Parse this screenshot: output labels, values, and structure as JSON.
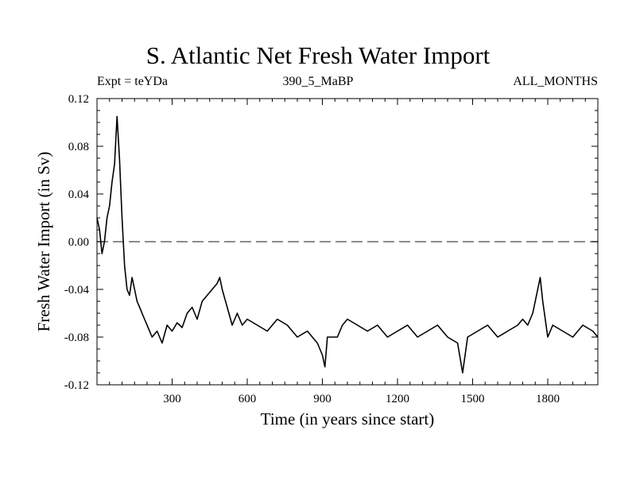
{
  "chart_data": {
    "type": "line",
    "title": "S. Atlantic Net Fresh Water Import",
    "subtitle_left": "Expt = teYDa",
    "subtitle_center": "390_5_MaBP",
    "subtitle_right": "ALL_MONTHS",
    "xlabel": "Time (in years since start)",
    "ylabel": "Fresh Water Import (in Sv)",
    "xlim": [
      0,
      2000
    ],
    "ylim": [
      -0.12,
      0.12
    ],
    "x_ticks": [
      300,
      600,
      900,
      1200,
      1500,
      1800
    ],
    "x_tick_labels": [
      "300",
      "600",
      "900",
      "1200",
      "1500",
      "1800"
    ],
    "y_ticks": [
      0.12,
      0.08,
      0.04,
      0.0,
      -0.04,
      -0.08,
      -0.12
    ],
    "y_tick_labels": [
      "0.12",
      "0.08",
      "0.04",
      "0.00",
      "-0.04",
      "-0.08",
      "-0.12"
    ],
    "reference_line": {
      "y": 0.0,
      "style": "dashed"
    },
    "grid": false,
    "series": [
      {
        "name": "net fresh water import",
        "x": [
          0,
          10,
          20,
          30,
          40,
          50,
          60,
          70,
          80,
          90,
          100,
          110,
          120,
          130,
          140,
          150,
          160,
          170,
          180,
          190,
          200,
          220,
          240,
          260,
          280,
          300,
          320,
          340,
          360,
          380,
          400,
          420,
          440,
          460,
          480,
          490,
          500,
          520,
          540,
          560,
          580,
          600,
          640,
          680,
          720,
          760,
          800,
          840,
          880,
          900,
          910,
          920,
          940,
          960,
          980,
          1000,
          1040,
          1080,
          1120,
          1160,
          1200,
          1240,
          1280,
          1320,
          1360,
          1400,
          1440,
          1460,
          1480,
          1520,
          1560,
          1600,
          1640,
          1680,
          1700,
          1720,
          1740,
          1760,
          1770,
          1780,
          1800,
          1820,
          1860,
          1900,
          1940,
          1980,
          2000
        ],
        "y": [
          0.02,
          0.01,
          -0.01,
          0.0,
          0.02,
          0.03,
          0.05,
          0.065,
          0.105,
          0.07,
          0.02,
          -0.02,
          -0.04,
          -0.045,
          -0.03,
          -0.04,
          -0.05,
          -0.055,
          -0.06,
          -0.065,
          -0.07,
          -0.08,
          -0.075,
          -0.085,
          -0.07,
          -0.075,
          -0.068,
          -0.072,
          -0.06,
          -0.055,
          -0.065,
          -0.05,
          -0.045,
          -0.04,
          -0.035,
          -0.03,
          -0.04,
          -0.055,
          -0.07,
          -0.06,
          -0.07,
          -0.065,
          -0.07,
          -0.075,
          -0.065,
          -0.07,
          -0.08,
          -0.075,
          -0.085,
          -0.095,
          -0.105,
          -0.08,
          -0.08,
          -0.08,
          -0.07,
          -0.065,
          -0.07,
          -0.075,
          -0.07,
          -0.08,
          -0.075,
          -0.07,
          -0.08,
          -0.075,
          -0.07,
          -0.08,
          -0.085,
          -0.11,
          -0.08,
          -0.075,
          -0.07,
          -0.08,
          -0.075,
          -0.07,
          -0.065,
          -0.07,
          -0.06,
          -0.04,
          -0.03,
          -0.05,
          -0.08,
          -0.07,
          -0.075,
          -0.08,
          -0.07,
          -0.075,
          -0.08
        ]
      }
    ]
  }
}
